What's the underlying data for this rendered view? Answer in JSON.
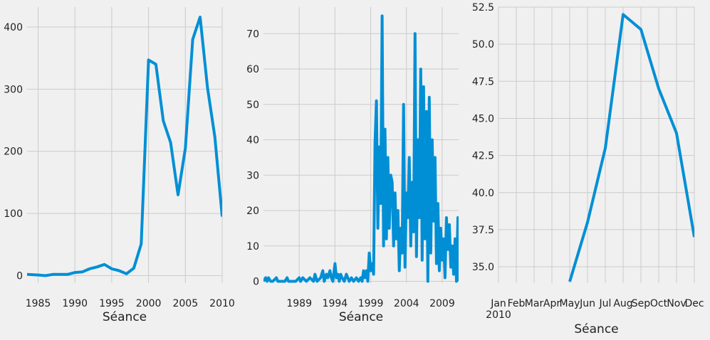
{
  "colors": {
    "background": "#f0f0f0",
    "grid": "#cbcbcb",
    "line": "#008fd5",
    "text": "#222222"
  },
  "chart_data": [
    {
      "type": "line",
      "xlabel": "Séance",
      "ylabel": "",
      "title": "",
      "grid": true,
      "xlim": [
        1983.5,
        2010
      ],
      "ylim": [
        -12,
        432
      ],
      "x_ticks": [
        1985,
        1990,
        1995,
        2000,
        2005,
        2010
      ],
      "y_ticks": [
        0,
        100,
        200,
        300,
        400
      ],
      "x": [
        1983.5,
        1985,
        1986,
        1987,
        1988,
        1989,
        1990,
        1991,
        1992,
        1993,
        1994,
        1995,
        1996,
        1997,
        1998,
        1999,
        2000,
        2001,
        2002,
        2003,
        2004,
        2005,
        2006,
        2007,
        2008,
        2009,
        2010
      ],
      "y": [
        2,
        1,
        0,
        2,
        2,
        2,
        5,
        6,
        11,
        14,
        18,
        11,
        8,
        3,
        12,
        51,
        347,
        340,
        249,
        214,
        130,
        205,
        380,
        416,
        303,
        223,
        95
      ]
    },
    {
      "type": "line",
      "xlabel": "Séance",
      "ylabel": "",
      "title": "",
      "grid": true,
      "xlim": [
        1984,
        2011.3
      ],
      "ylim": [
        -0.5,
        77.5
      ],
      "x_ticks": [
        1989,
        1994,
        1999,
        2004,
        2009
      ],
      "y_ticks": [
        0,
        10,
        20,
        30,
        40,
        50,
        60,
        70
      ],
      "x": [
        1984.0,
        1984.3,
        1984.5,
        1984.7,
        1985.0,
        1985.3,
        1985.8,
        1986.0,
        1986.5,
        1987.0,
        1987.3,
        1987.5,
        1988.0,
        1988.5,
        1989.0,
        1989.2,
        1989.5,
        1990.0,
        1990.5,
        1991.0,
        1991.2,
        1991.5,
        1992.0,
        1992.3,
        1992.5,
        1992.8,
        1993.0,
        1993.3,
        1993.5,
        1993.7,
        1994.0,
        1994.2,
        1994.4,
        1994.6,
        1994.8,
        1995.0,
        1995.3,
        1995.6,
        1996.0,
        1996.3,
        1996.6,
        1997.0,
        1997.3,
        1997.6,
        1997.8,
        1998.0,
        1998.2,
        1998.4,
        1998.6,
        1998.8,
        1999.0,
        1999.2,
        1999.4,
        1999.6,
        1999.8,
        2000.0,
        2000.2,
        2000.4,
        2000.6,
        2000.8,
        2001.0,
        2001.2,
        2001.4,
        2001.6,
        2001.8,
        2002.0,
        2002.2,
        2002.4,
        2002.6,
        2002.8,
        2003.0,
        2003.2,
        2003.4,
        2003.6,
        2003.8,
        2004.0,
        2004.2,
        2004.4,
        2004.6,
        2004.8,
        2005.0,
        2005.2,
        2005.4,
        2005.6,
        2005.8,
        2006.0,
        2006.2,
        2006.4,
        2006.6,
        2006.8,
        2007.0,
        2007.2,
        2007.4,
        2007.6,
        2007.8,
        2008.0,
        2008.2,
        2008.4,
        2008.6,
        2008.8,
        2009.0,
        2009.2,
        2009.4,
        2009.6,
        2009.8,
        2010.0,
        2010.2,
        2010.4,
        2010.6,
        2010.8,
        2011.0,
        2011.2,
        2011.3
      ],
      "y": [
        0,
        1,
        0,
        1,
        0,
        0,
        1,
        0,
        0,
        0,
        1,
        0,
        0,
        0,
        1,
        0,
        1,
        0,
        1,
        0,
        2,
        0,
        1,
        3,
        0,
        2,
        1,
        3,
        1,
        0,
        5,
        1,
        2,
        0,
        2,
        1,
        0,
        2,
        0,
        1,
        0,
        1,
        0,
        1,
        0,
        3,
        1,
        3,
        0,
        8,
        3,
        5,
        2,
        39,
        51,
        15,
        38,
        22,
        75,
        10,
        43,
        12,
        35,
        15,
        30,
        28,
        10,
        25,
        12,
        20,
        3,
        15,
        8,
        50,
        4,
        25,
        18,
        35,
        10,
        28,
        14,
        70,
        7,
        40,
        18,
        60,
        6,
        55,
        12,
        48,
        0,
        52,
        8,
        40,
        17,
        35,
        5,
        22,
        3,
        15,
        6,
        12,
        1,
        18,
        9,
        16,
        4,
        10,
        2,
        12,
        0,
        18,
        0
      ]
    },
    {
      "type": "line",
      "xlabel": "Séance",
      "ylabel": "",
      "title": "",
      "grid": true,
      "xlim": [
        0,
        11
      ],
      "ylim": [
        33.9,
        52.5
      ],
      "x_ticks": [
        0,
        1,
        2,
        3,
        4,
        5,
        6,
        7,
        8,
        9,
        10,
        11
      ],
      "x_tick_labels": [
        "Jan",
        "Feb",
        "Mar",
        "Apr",
        "May",
        "Jun",
        "Jul",
        "Aug",
        "Sep",
        "Oct",
        "Nov",
        "Dec"
      ],
      "x_tick_sublabel": "2010",
      "y_ticks": [
        35.0,
        37.5,
        40.0,
        42.5,
        45.0,
        47.5,
        50.0,
        52.5
      ],
      "y_tick_labels": [
        "35.0",
        "37.5",
        "40.0",
        "42.5",
        "45.0",
        "47.5",
        "50.0",
        "52.5"
      ],
      "categories": [
        "Jan",
        "Feb",
        "Mar",
        "Apr",
        "May",
        "Jun",
        "Jul",
        "Aug",
        "Sep",
        "Oct",
        "Nov",
        "Dec"
      ],
      "x": [
        4,
        5,
        6,
        7,
        8,
        9,
        10,
        11
      ],
      "y": [
        34,
        38,
        43,
        52,
        51,
        47,
        44,
        37
      ]
    }
  ]
}
